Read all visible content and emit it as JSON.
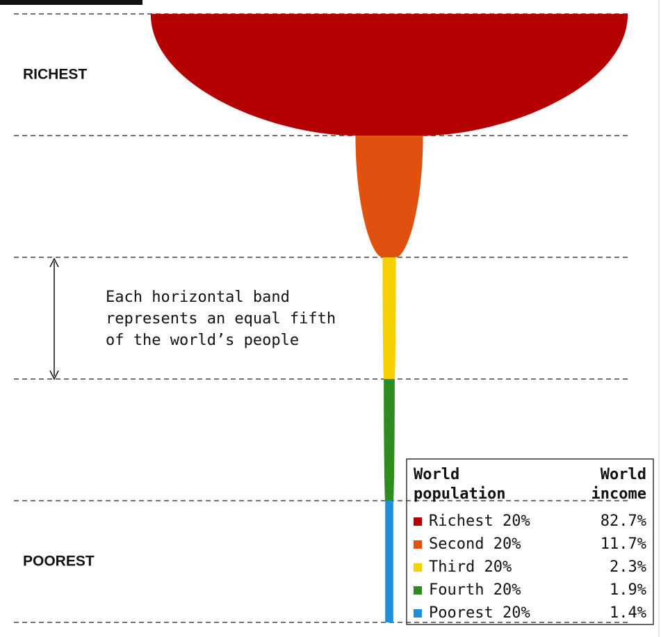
{
  "chart_data": {
    "type": "champagne",
    "categories": [
      "Richest 20%",
      "Second 20%",
      "Third 20%",
      "Fourth 20%",
      "Poorest 20%"
    ],
    "values": [
      82.7,
      11.7,
      2.3,
      1.9,
      1.4
    ],
    "value_labels": [
      "82.7%",
      "11.7%",
      "2.3%",
      "1.9%",
      "1.4%"
    ],
    "colors": [
      "#b30000",
      "#e0500f",
      "#f5d000",
      "#2e8b1e",
      "#1f8fd6"
    ],
    "side_labels": {
      "top": "RICHEST",
      "bottom": "POOREST"
    },
    "annotation": [
      "Each horizontal band",
      "represents an equal fifth",
      "of the world’s people"
    ],
    "legend_headers": {
      "left": [
        "World",
        "population"
      ],
      "right": [
        "World",
        "income"
      ]
    }
  }
}
